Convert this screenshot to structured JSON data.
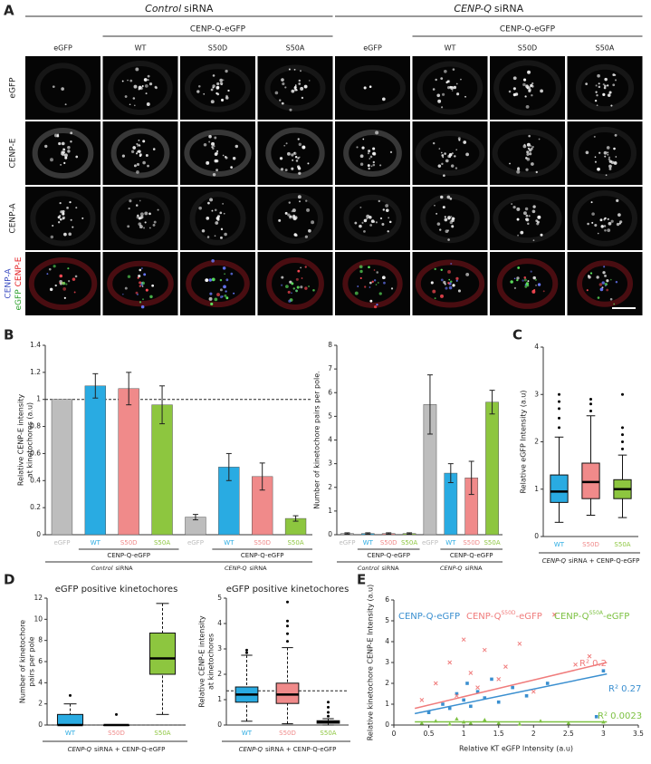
{
  "figure": {
    "panel_labels": [
      "A",
      "B",
      "C",
      "D",
      "E"
    ],
    "panel_a": {
      "groups": [
        {
          "italic": "Control",
          "text": "siRNA",
          "subgroup": "CENP-Q-eGFP",
          "columns": [
            "eGFP",
            "WT",
            "S50D",
            "S50A"
          ]
        },
        {
          "italic": "CENP-Q",
          "text": "siRNA",
          "subgroup": "CENP-Q-eGFP",
          "columns": [
            "eGFP",
            "WT",
            "S50D",
            "S50A"
          ]
        }
      ],
      "rows": [
        "eGFP",
        "CENP-E",
        "CENP-A"
      ],
      "merge_row": [
        {
          "text": "CENP-A",
          "color": "#3b4cc0"
        },
        {
          "text": "eGFP",
          "color": "#2ca02c"
        },
        {
          "text": "CENP-E",
          "color": "#e41a1c"
        }
      ]
    }
  },
  "chart_data": [
    {
      "type": "bar",
      "categories": [
        "eGFP",
        "WT",
        "S50D",
        "S50A",
        "eGFP",
        "WT",
        "S50D",
        "S50A"
      ],
      "values": [
        1,
        1.1,
        1.08,
        0.96,
        0.13,
        0.5,
        0.43,
        0.12
      ],
      "errors": [
        0,
        0.09,
        0.12,
        0.14,
        0.02,
        0.1,
        0.1,
        0.02
      ],
      "colors": [
        "#bdbdbd",
        "#29abe2",
        "#f08a8a",
        "#8dc63f",
        "#bdbdbd",
        "#29abe2",
        "#f08a8a",
        "#8dc63f"
      ],
      "ylim": [
        0,
        1.4
      ],
      "yticks": [
        0,
        0.2,
        0.4,
        0.6,
        0.8,
        1,
        1.2,
        1.4
      ],
      "ylabel": [
        "Relative CENP-E intensity",
        "at kinetochores (a.u)"
      ],
      "reference_line": 1,
      "subgroup_labels": [
        "CENP-Q-eGFP",
        "CENP-Q-eGFP"
      ],
      "group_labels": [
        {
          "italic": "Control",
          "text": "siRNA"
        },
        {
          "italic": "CENP-Q",
          "text": "siRNA"
        }
      ]
    },
    {
      "type": "bar",
      "categories": [
        "eGFP",
        "WT",
        "S50D",
        "S50A",
        "eGFP",
        "WT",
        "S50D",
        "S50A"
      ],
      "values": [
        0.05,
        0.05,
        0.05,
        0.05,
        5.5,
        2.6,
        2.4,
        5.6
      ],
      "errors": [
        0.03,
        0.03,
        0.03,
        0.03,
        1.25,
        0.4,
        0.7,
        0.5
      ],
      "colors": [
        "#bdbdbd",
        "#29abe2",
        "#f08a8a",
        "#8dc63f",
        "#bdbdbd",
        "#29abe2",
        "#f08a8a",
        "#8dc63f"
      ],
      "ylim": [
        0,
        8
      ],
      "yticks": [
        0,
        1,
        2,
        3,
        4,
        5,
        6,
        7,
        8
      ],
      "ylabel": [
        "Number of kinetochore  pairs per pole."
      ],
      "subgroup_labels": [
        "CENP-Q-eGFP",
        "CENP-Q-eGFP"
      ],
      "group_labels": [
        {
          "italic": "Control",
          "text": "siRNA"
        },
        {
          "italic": "CENP-Q",
          "text": "siRNA"
        }
      ]
    },
    {
      "type": "box",
      "categories": [
        "WT",
        "S50D",
        "S50A"
      ],
      "colors": [
        "#29abe2",
        "#f08a8a",
        "#8dc63f"
      ],
      "boxes": [
        {
          "min": 0.3,
          "q1": 0.72,
          "median": 0.95,
          "q3": 1.3,
          "max": 2.1,
          "outliers": [
            2.3,
            2.5,
            2.7,
            2.85,
            3.0
          ]
        },
        {
          "min": 0.45,
          "q1": 0.8,
          "median": 1.15,
          "q3": 1.55,
          "max": 2.55,
          "outliers": [
            2.65,
            2.8,
            2.9
          ]
        },
        {
          "min": 0.4,
          "q1": 0.8,
          "median": 1.0,
          "q3": 1.2,
          "max": 1.72,
          "outliers": [
            1.85,
            2.0,
            2.15,
            2.3,
            3.0
          ]
        }
      ],
      "ylim": [
        0,
        4
      ],
      "yticks": [
        0,
        1,
        2,
        3,
        4
      ],
      "ylabel": [
        "Relative eGFP Intensity (a.u)"
      ],
      "xlabel": {
        "italic": "CENP-Q",
        "text": "siRNA + CENP-Q-eGFP"
      }
    },
    {
      "type": "box",
      "title": "eGFP positive kinetochores",
      "categories": [
        "WT",
        "S50D",
        "S50A"
      ],
      "colors": [
        "#29abe2",
        "#f08a8a",
        "#8dc63f"
      ],
      "boxes": [
        {
          "min": 0,
          "q1": 0,
          "median": 0,
          "q3": 1,
          "max": 2,
          "outliers": [
            2.8
          ]
        },
        {
          "min": 0,
          "q1": 0,
          "median": 0,
          "q3": 0,
          "max": 0,
          "outliers": [
            1
          ]
        },
        {
          "min": 1,
          "q1": 4.8,
          "median": 6.3,
          "q3": 8.7,
          "max": 11.5,
          "outliers": []
        }
      ],
      "ylim": [
        0,
        12
      ],
      "yticks": [
        0,
        2,
        4,
        6,
        8,
        10,
        12
      ],
      "ylabel": [
        "Number of kinetochore",
        "pairs per pole"
      ],
      "reference_line": 0,
      "whisker_dashed": true,
      "xlabel": {
        "italic": "CENP-Q",
        "text": "siRNA + CENP-Q-eGFP"
      }
    },
    {
      "type": "box",
      "title": "eGFP positive kinetochores",
      "categories": [
        "WT",
        "S50D",
        "S50A"
      ],
      "colors": [
        "#29abe2",
        "#f08a8a",
        "#8dc63f"
      ],
      "boxes": [
        {
          "min": 0.15,
          "q1": 0.9,
          "median": 1.2,
          "q3": 1.5,
          "max": 2.75,
          "outliers": [
            2.85,
            2.95
          ]
        },
        {
          "min": 0.05,
          "q1": 0.85,
          "median": 1.2,
          "q3": 1.65,
          "max": 3.05,
          "outliers": [
            3.3,
            3.6,
            3.9,
            4.1,
            4.85
          ]
        },
        {
          "min": 0,
          "q1": 0.07,
          "median": 0.12,
          "q3": 0.17,
          "max": 0.25,
          "outliers": [
            0.35,
            0.5,
            0.7,
            0.9
          ]
        }
      ],
      "ylim": [
        0,
        5
      ],
      "yticks": [
        0,
        1,
        2,
        3,
        4,
        5
      ],
      "ylabel": [
        "Relative CENP-E intensity",
        "at kinetochores"
      ],
      "reference_line": 1.35,
      "whisker_dashed": true,
      "xlabel": {
        "italic": "CENP-Q",
        "text": "siRNA + CENP-Q-eGFP"
      }
    },
    {
      "type": "scatter",
      "xlabel": "Relative KT eGFP Intensity (a.u)",
      "ylabel": [
        "Relative kinetochore CENP-E Intensity (a.u)"
      ],
      "xlim": [
        0,
        3.5
      ],
      "xticks": [
        0,
        0.5,
        1,
        1.5,
        2,
        2.5,
        3,
        3.5
      ],
      "ylim": [
        0,
        6
      ],
      "yticks": [
        0,
        1,
        2,
        3,
        4,
        5,
        6
      ],
      "series": [
        {
          "name": "CENP-Q-eGFP",
          "color": "#3a8fd0",
          "marker": "square",
          "x": [
            0.5,
            0.7,
            0.8,
            0.9,
            1.0,
            1.05,
            1.1,
            1.2,
            1.3,
            1.4,
            1.5,
            1.7,
            1.9,
            2.2,
            2.9,
            3.0
          ],
          "values": [
            0.6,
            1.0,
            0.8,
            1.5,
            1.2,
            2.0,
            0.9,
            1.6,
            1.3,
            2.2,
            1.1,
            1.8,
            1.4,
            2.0,
            0.4,
            2.6
          ],
          "fit": {
            "x": [
              0.3,
              3.05
            ],
            "y": [
              0.55,
              2.45
            ]
          },
          "r2_label": "R² 0.27"
        },
        {
          "name": "CENP-Q",
          "name_superscript": "S50D",
          "name_suffix": "-eGFP",
          "color": "#f07c7c",
          "marker": "x",
          "x": [
            0.4,
            0.6,
            0.8,
            0.9,
            1.0,
            1.1,
            1.2,
            1.3,
            1.5,
            1.6,
            1.8,
            2.0,
            2.3,
            2.6,
            2.8
          ],
          "values": [
            1.2,
            2.0,
            3.0,
            1.4,
            4.1,
            2.5,
            1.8,
            3.6,
            2.2,
            2.8,
            3.9,
            1.6,
            5.3,
            2.9,
            3.3
          ],
          "fit": {
            "x": [
              0.3,
              3.05
            ],
            "y": [
              0.8,
              3.0
            ]
          },
          "r2_label": "R² 0.2"
        },
        {
          "name": "CENP-Q",
          "name_superscript": "S50A",
          "name_suffix": "-eGFP",
          "color": "#7dc142",
          "marker": "triangle",
          "x": [
            0.4,
            0.6,
            0.8,
            0.9,
            1.0,
            1.1,
            1.3,
            1.5,
            1.8,
            2.1,
            2.5,
            3.0
          ],
          "values": [
            0.1,
            0.2,
            0.05,
            0.3,
            0.15,
            0.1,
            0.25,
            0.1,
            0.05,
            0.2,
            0.1,
            0.15
          ],
          "fit": {
            "x": [
              0.3,
              3.05
            ],
            "y": [
              0.15,
              0.15
            ]
          },
          "r2_label": "R² 0.0023"
        }
      ]
    }
  ]
}
